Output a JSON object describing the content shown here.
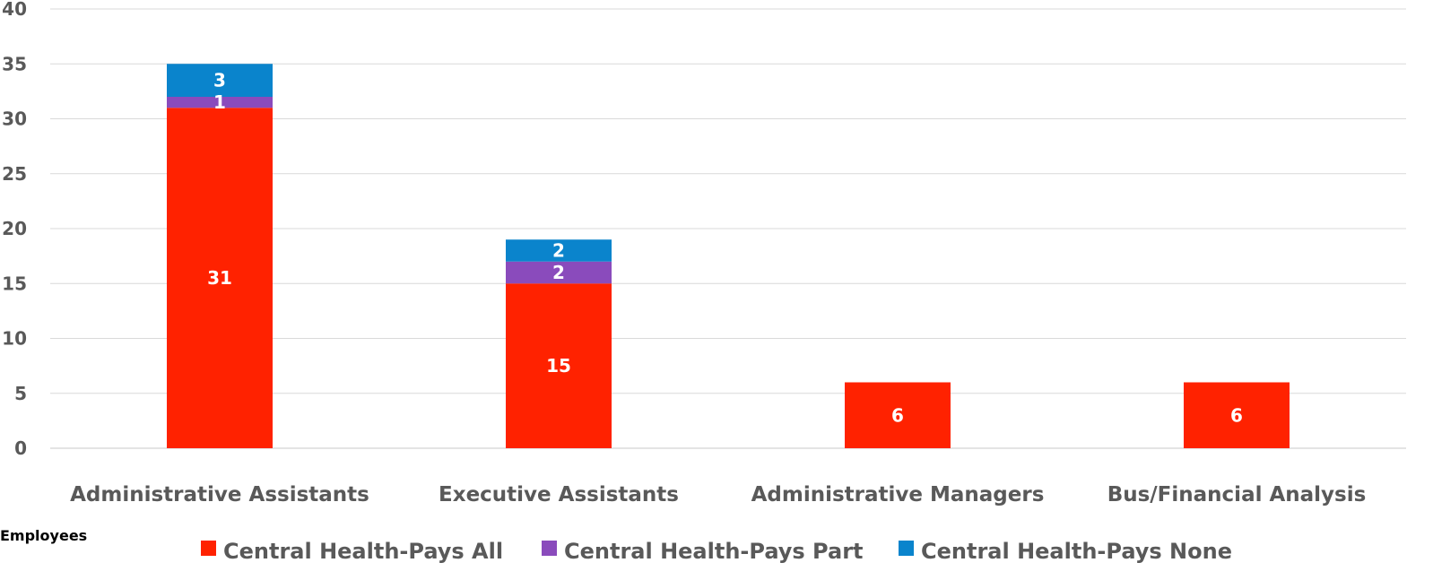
{
  "chart_data": {
    "type": "bar",
    "stacked": true,
    "categories": [
      "Administrative Assistants",
      "Executive Assistants",
      "Administrative Managers",
      "Bus/Financial Analysis"
    ],
    "series": [
      {
        "name": "Central Health-Pays All",
        "values": [
          31,
          15,
          6,
          6
        ],
        "color": "#ff2200"
      },
      {
        "name": "Central Health-Pays Part",
        "values": [
          1,
          2,
          0,
          0
        ],
        "color": "#8a4bbc"
      },
      {
        "name": "Central Health-Pays None",
        "values": [
          3,
          2,
          0,
          0
        ],
        "color": "#0a84cc"
      }
    ],
    "yticks": [
      0,
      5,
      10,
      15,
      20,
      25,
      30,
      35,
      40
    ],
    "ylim": [
      0,
      40
    ],
    "grid": true,
    "legend_position": "bottom",
    "side_label": "Employees",
    "title": "",
    "xlabel": "",
    "ylabel": ""
  }
}
